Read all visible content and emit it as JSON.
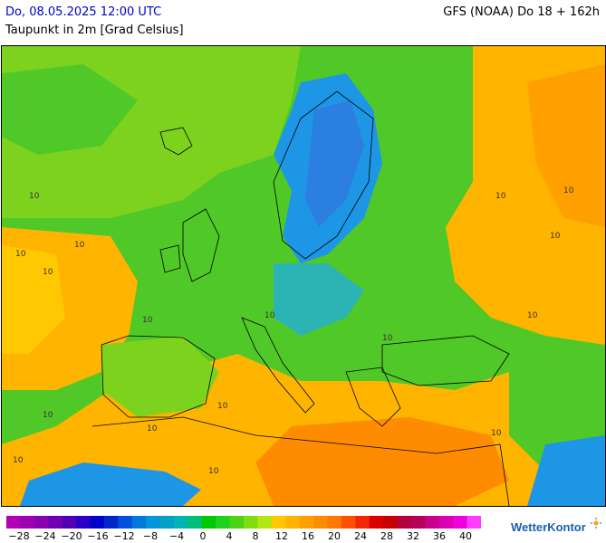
{
  "header": {
    "datetime": "Do, 08.05.2025 12:00 UTC",
    "model": "GFS (NOAA) Do 18 + 162h",
    "parameter": "Taupunkt in 2m [Grad Celsius]"
  },
  "map": {
    "contour_labels": [
      "10",
      "10",
      "10",
      "10",
      "10",
      "10",
      "10",
      "10",
      "10",
      "10",
      "10",
      "10",
      "10",
      "10",
      "10",
      "10",
      "10"
    ]
  },
  "legend": {
    "labels": [
      "-28",
      "-24",
      "-20",
      "-16",
      "-12",
      "-8",
      "-4",
      "0",
      "4",
      "8",
      "12",
      "16",
      "20",
      "24",
      "28",
      "32",
      "36",
      "40"
    ],
    "colors": [
      "#b400b4",
      "#a000b4",
      "#8c00b4",
      "#6e00b4",
      "#5000b4",
      "#2800c8",
      "#0000c8",
      "#0028c8",
      "#0050dc",
      "#0078dc",
      "#0096dc",
      "#00a0c8",
      "#00b4b4",
      "#00be78",
      "#00c800",
      "#1ed21e",
      "#50d214",
      "#82dc14",
      "#b4e614",
      "#ffc800",
      "#ffb400",
      "#ffa000",
      "#ff8c00",
      "#ff7800",
      "#ff5000",
      "#f02800",
      "#dc0000",
      "#c80000",
      "#b4003c",
      "#b4005a",
      "#c8008c",
      "#dc00b4",
      "#f000dc",
      "#ff3cff"
    ],
    "brand": "WetterKontor"
  }
}
